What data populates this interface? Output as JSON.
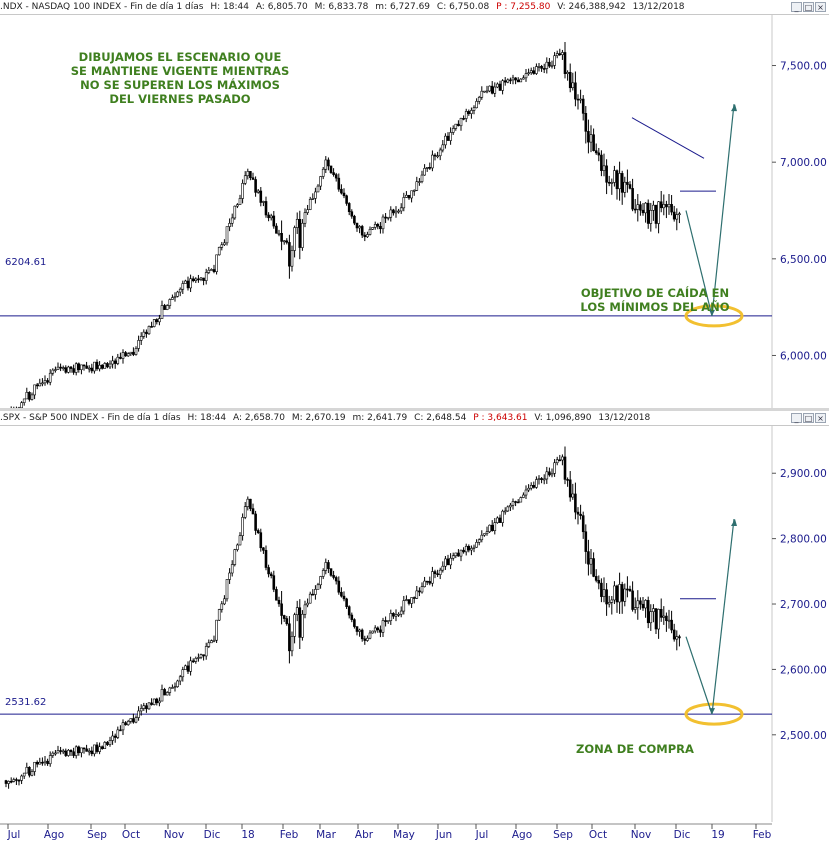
{
  "top_panel": {
    "header": {
      "symbol": ".NDX - NASDAQ 100 INDEX - Fin de día 1 días",
      "h": "H: 18:44",
      "a": "A: 6,805.70",
      "m": "M: 6,833.78",
      "mn": "m: 6,727.69",
      "c": "C: 6,750.08",
      "p": "P : 7,255.80",
      "v": "V: 246,388,942",
      "date": "13/12/2018"
    },
    "note_top": "DIBUJAMOS EL ESCENARIO QUE\nSE MANTIENE VIGENTE MIENTRAS\nNO SE SUPEREN LOS MÁXIMOS\nDEL VIERNES PASADO",
    "note_bottom": "OBJETIVO DE CAÍDA EN\nLOS MÍNIMOS DEL AÑO",
    "level_label": "6204.61"
  },
  "bottom_panel": {
    "header": {
      "symbol": ".SPX - S&P 500 INDEX - Fin de día 1 días",
      "h": "H: 18:44",
      "a": "A: 2,658.70",
      "m": "M: 2,670.19",
      "mn": "m: 2,641.79",
      "c": "C: 2,648.54",
      "p": "P : 3,643.61",
      "v": "V: 1,096,890",
      "date": "13/12/2018"
    },
    "note": "ZONA DE COMPRA",
    "level_label": "2531.62"
  },
  "window_buttons": [
    "_",
    "□",
    "×"
  ],
  "colors": {
    "note_green": "#3f7f1f",
    "level_line": "#1a1a8c",
    "arrow": "#2e6f6f",
    "highlight": "#f2c030",
    "axis_text": "#1a1a8c",
    "red_value": "#cc0000"
  },
  "chart_data": [
    {
      "type": "candlestick",
      "title": ".NDX - NASDAQ 100 INDEX",
      "y_ticks": [
        6000,
        6500,
        7000,
        7500
      ],
      "y_tick_labels": [
        "6,000.00",
        "6,500.00",
        "7,000.00",
        "7,500.00"
      ],
      "ylim": [
        5780,
        7720
      ],
      "horizontal_level": 6204.61,
      "x": [
        "Jul",
        "Ago",
        "Sep",
        "Oct",
        "Nov",
        "Dic",
        "18",
        "Feb",
        "Mar",
        "Abr",
        "May",
        "Jun",
        "Jul",
        "Ago",
        "Sep",
        "Oct",
        "Nov",
        "Dic",
        "19",
        "Feb"
      ],
      "approx_path": [
        {
          "month": "Jul",
          "value": 5720
        },
        {
          "month": "Ago",
          "value": 5920
        },
        {
          "month": "Sep",
          "value": 5950
        },
        {
          "month": "Oct",
          "value": 6000
        },
        {
          "month": "Nov",
          "value": 6330
        },
        {
          "month": "Dic",
          "value": 6430
        },
        {
          "month": "18",
          "value": 6950
        },
        {
          "month": "Feb",
          "value": 6500
        },
        {
          "month": "Mar",
          "value": 7000
        },
        {
          "month": "Abr",
          "value": 6600
        },
        {
          "month": "May",
          "value": 6800
        },
        {
          "month": "Jun",
          "value": 7100
        },
        {
          "month": "Jul",
          "value": 7350
        },
        {
          "month": "Ago",
          "value": 7450
        },
        {
          "month": "Sep",
          "value": 7550
        },
        {
          "month": "Oct",
          "value": 7000
        },
        {
          "month": "Nov",
          "value": 6750
        },
        {
          "month": "Dic",
          "value": 6750
        }
      ],
      "projection": {
        "to_low": 6204.61,
        "then_high": 7300
      },
      "trendline": {
        "from": 7230,
        "to": 7020
      },
      "resistance": 6850
    },
    {
      "type": "candlestick",
      "title": ".SPX - S&P 500 INDEX",
      "y_ticks": [
        2500,
        2600,
        2700,
        2800,
        2900
      ],
      "y_tick_labels": [
        "2,500.00",
        "2,600.00",
        "2,700.00",
        "2,800.00",
        "2,900.00"
      ],
      "ylim": [
        2385,
        2960
      ],
      "horizontal_level": 2531.62,
      "x": [
        "Jul",
        "Ago",
        "Sep",
        "Oct",
        "Nov",
        "Dic",
        "18",
        "Feb",
        "Mar",
        "Abr",
        "May",
        "Jun",
        "Jul",
        "Ago",
        "Sep",
        "Oct",
        "Nov",
        "Dic",
        "19",
        "Feb"
      ],
      "approx_path": [
        {
          "month": "Jul",
          "value": 2430
        },
        {
          "month": "Ago",
          "value": 2470
        },
        {
          "month": "Sep",
          "value": 2480
        },
        {
          "month": "Oct",
          "value": 2520
        },
        {
          "month": "Nov",
          "value": 2580
        },
        {
          "month": "Dic",
          "value": 2640
        },
        {
          "month": "18",
          "value": 2860
        },
        {
          "month": "Feb",
          "value": 2640
        },
        {
          "month": "Mar",
          "value": 2760
        },
        {
          "month": "Abr",
          "value": 2640
        },
        {
          "month": "May",
          "value": 2700
        },
        {
          "month": "Jun",
          "value": 2760
        },
        {
          "month": "Jul",
          "value": 2800
        },
        {
          "month": "Ago",
          "value": 2870
        },
        {
          "month": "Sep",
          "value": 2920
        },
        {
          "month": "Oct",
          "value": 2720
        },
        {
          "month": "Nov",
          "value": 2700
        },
        {
          "month": "Dic",
          "value": 2650
        }
      ],
      "projection": {
        "to_low": 2531.62,
        "then_high": 2830
      },
      "resistance": 2708
    }
  ]
}
